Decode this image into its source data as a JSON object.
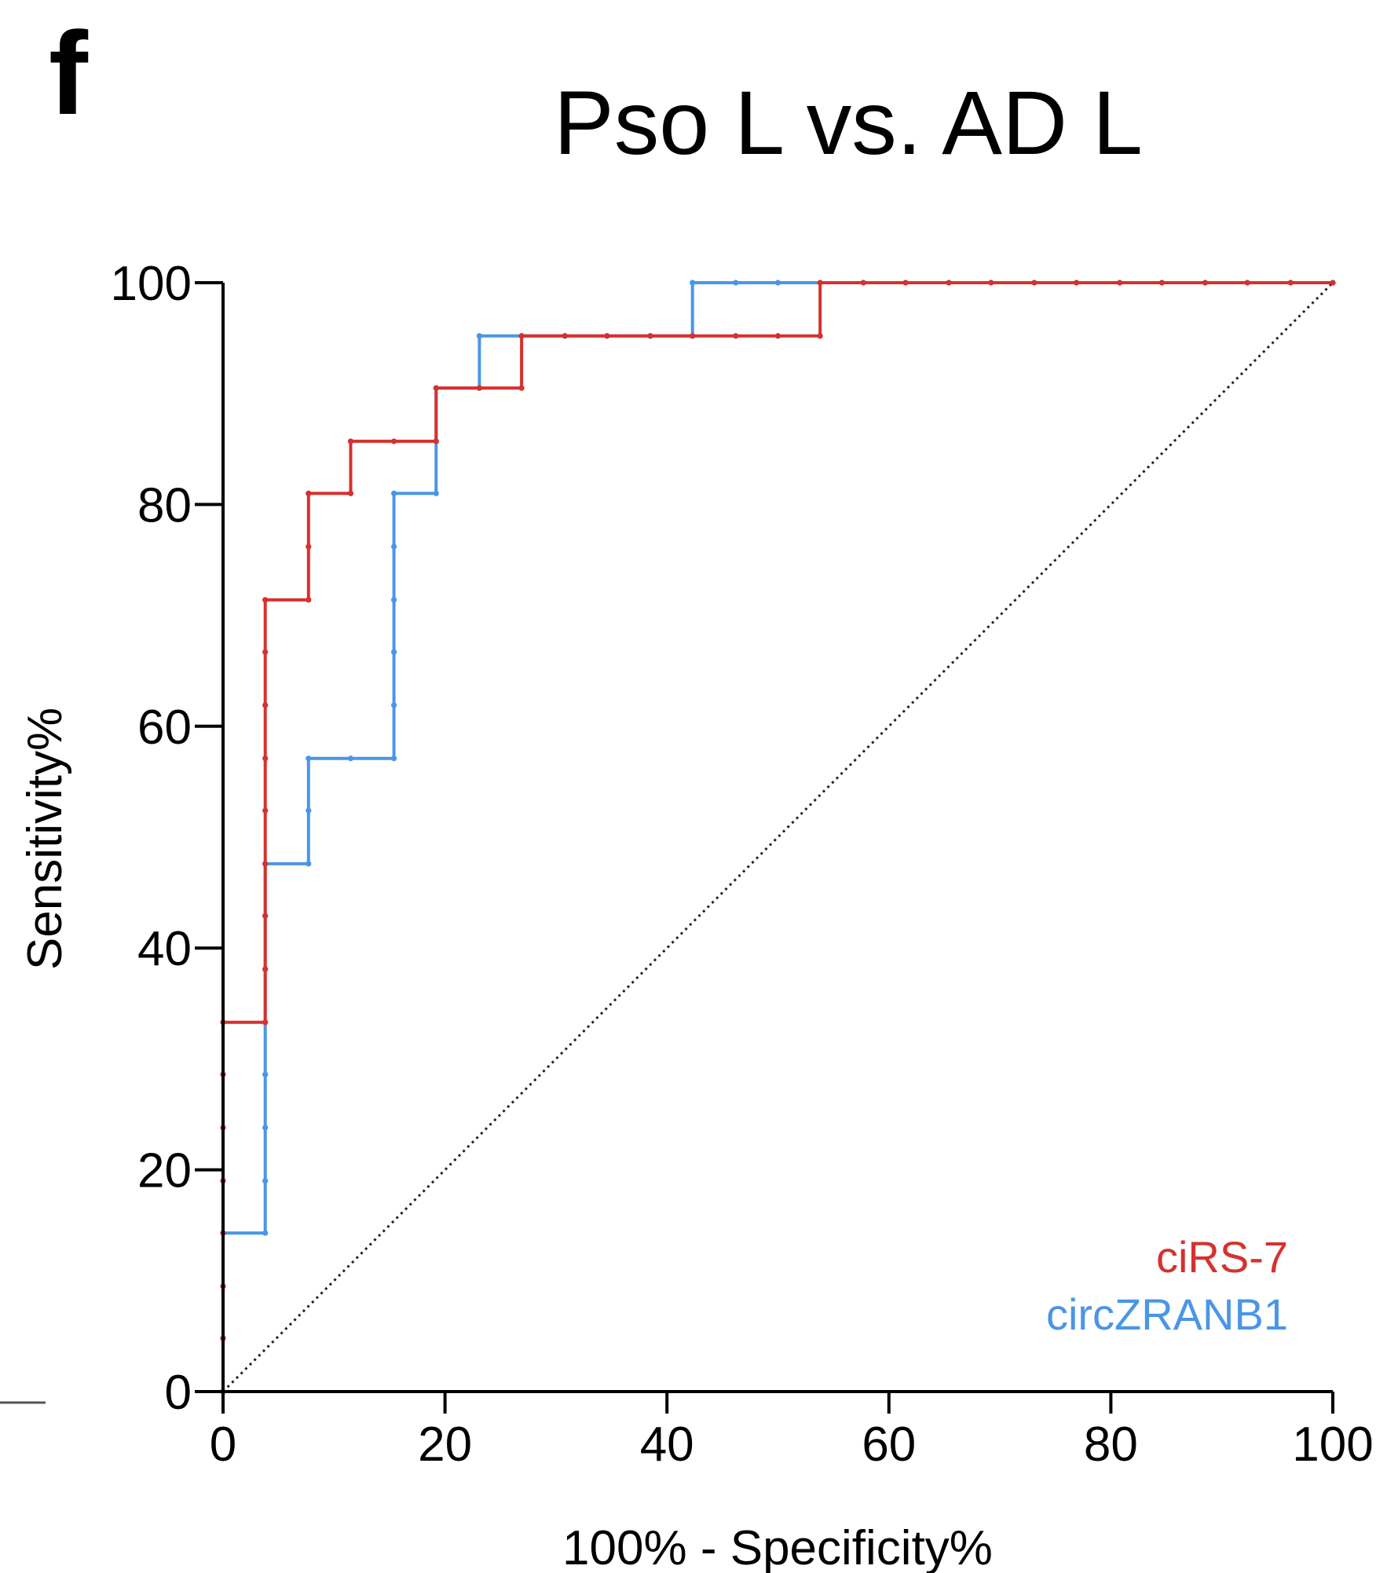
{
  "panel_label": "f",
  "chart_data": {
    "type": "line",
    "title": "Pso L vs. AD L",
    "xlabel": "100% - Specificity%",
    "ylabel": "Sensitivity%",
    "xlim": [
      0,
      100
    ],
    "ylim": [
      0,
      100
    ],
    "x_ticks": [
      0,
      20,
      40,
      60,
      80,
      100
    ],
    "y_ticks": [
      0,
      20,
      40,
      60,
      80,
      100
    ],
    "grid": false,
    "legend_position": "bottom-right",
    "reference_line": {
      "from": [
        0,
        0
      ],
      "to": [
        100,
        100
      ],
      "style": "dotted"
    },
    "series": [
      {
        "name": "ciRS-7",
        "color": "#d6312e",
        "points": [
          [
            0,
            0
          ],
          [
            0,
            4.8
          ],
          [
            0,
            9.5
          ],
          [
            0,
            14.3
          ],
          [
            0,
            19
          ],
          [
            0,
            23.8
          ],
          [
            0,
            28.6
          ],
          [
            0,
            33.3
          ],
          [
            3.8,
            33.3
          ],
          [
            3.8,
            38.1
          ],
          [
            3.8,
            42.9
          ],
          [
            3.8,
            47.6
          ],
          [
            3.8,
            52.4
          ],
          [
            3.8,
            57.1
          ],
          [
            3.8,
            61.9
          ],
          [
            3.8,
            66.7
          ],
          [
            3.8,
            71.4
          ],
          [
            7.7,
            71.4
          ],
          [
            7.7,
            76.2
          ],
          [
            7.7,
            81
          ],
          [
            11.5,
            81
          ],
          [
            11.5,
            85.7
          ],
          [
            15.4,
            85.7
          ],
          [
            19.2,
            85.7
          ],
          [
            19.2,
            90.5
          ],
          [
            23.1,
            90.5
          ],
          [
            26.9,
            90.5
          ],
          [
            26.9,
            95.2
          ],
          [
            30.8,
            95.2
          ],
          [
            34.6,
            95.2
          ],
          [
            38.5,
            95.2
          ],
          [
            42.3,
            95.2
          ],
          [
            46.2,
            95.2
          ],
          [
            50,
            95.2
          ],
          [
            53.8,
            95.2
          ],
          [
            53.8,
            100
          ],
          [
            57.7,
            100
          ],
          [
            61.5,
            100
          ],
          [
            65.4,
            100
          ],
          [
            69.2,
            100
          ],
          [
            73.1,
            100
          ],
          [
            76.9,
            100
          ],
          [
            80.8,
            100
          ],
          [
            84.6,
            100
          ],
          [
            88.5,
            100
          ],
          [
            92.3,
            100
          ],
          [
            96.2,
            100
          ],
          [
            100,
            100
          ]
        ]
      },
      {
        "name": "circZRANB1",
        "color": "#4a96e6",
        "points": [
          [
            0,
            0
          ],
          [
            0,
            4.8
          ],
          [
            0,
            9.5
          ],
          [
            0,
            14.3
          ],
          [
            3.8,
            14.3
          ],
          [
            3.8,
            19
          ],
          [
            3.8,
            23.8
          ],
          [
            3.8,
            28.6
          ],
          [
            3.8,
            33.3
          ],
          [
            3.8,
            38.1
          ],
          [
            3.8,
            42.9
          ],
          [
            3.8,
            47.6
          ],
          [
            7.7,
            47.6
          ],
          [
            7.7,
            52.4
          ],
          [
            7.7,
            57.1
          ],
          [
            11.5,
            57.1
          ],
          [
            15.4,
            57.1
          ],
          [
            15.4,
            61.9
          ],
          [
            15.4,
            66.7
          ],
          [
            15.4,
            71.4
          ],
          [
            15.4,
            76.2
          ],
          [
            15.4,
            81
          ],
          [
            19.2,
            81
          ],
          [
            19.2,
            85.7
          ],
          [
            19.2,
            90.5
          ],
          [
            23.1,
            90.5
          ],
          [
            23.1,
            95.2
          ],
          [
            26.9,
            95.2
          ],
          [
            30.8,
            95.2
          ],
          [
            34.6,
            95.2
          ],
          [
            38.5,
            95.2
          ],
          [
            42.3,
            95.2
          ],
          [
            42.3,
            100
          ],
          [
            46.2,
            100
          ],
          [
            50,
            100
          ],
          [
            53.8,
            100
          ],
          [
            57.7,
            100
          ],
          [
            61.5,
            100
          ],
          [
            65.4,
            100
          ],
          [
            69.2,
            100
          ],
          [
            73.1,
            100
          ],
          [
            76.9,
            100
          ],
          [
            80.8,
            100
          ],
          [
            84.6,
            100
          ],
          [
            88.5,
            100
          ],
          [
            92.3,
            100
          ],
          [
            96.2,
            100
          ],
          [
            100,
            100
          ]
        ]
      }
    ]
  }
}
